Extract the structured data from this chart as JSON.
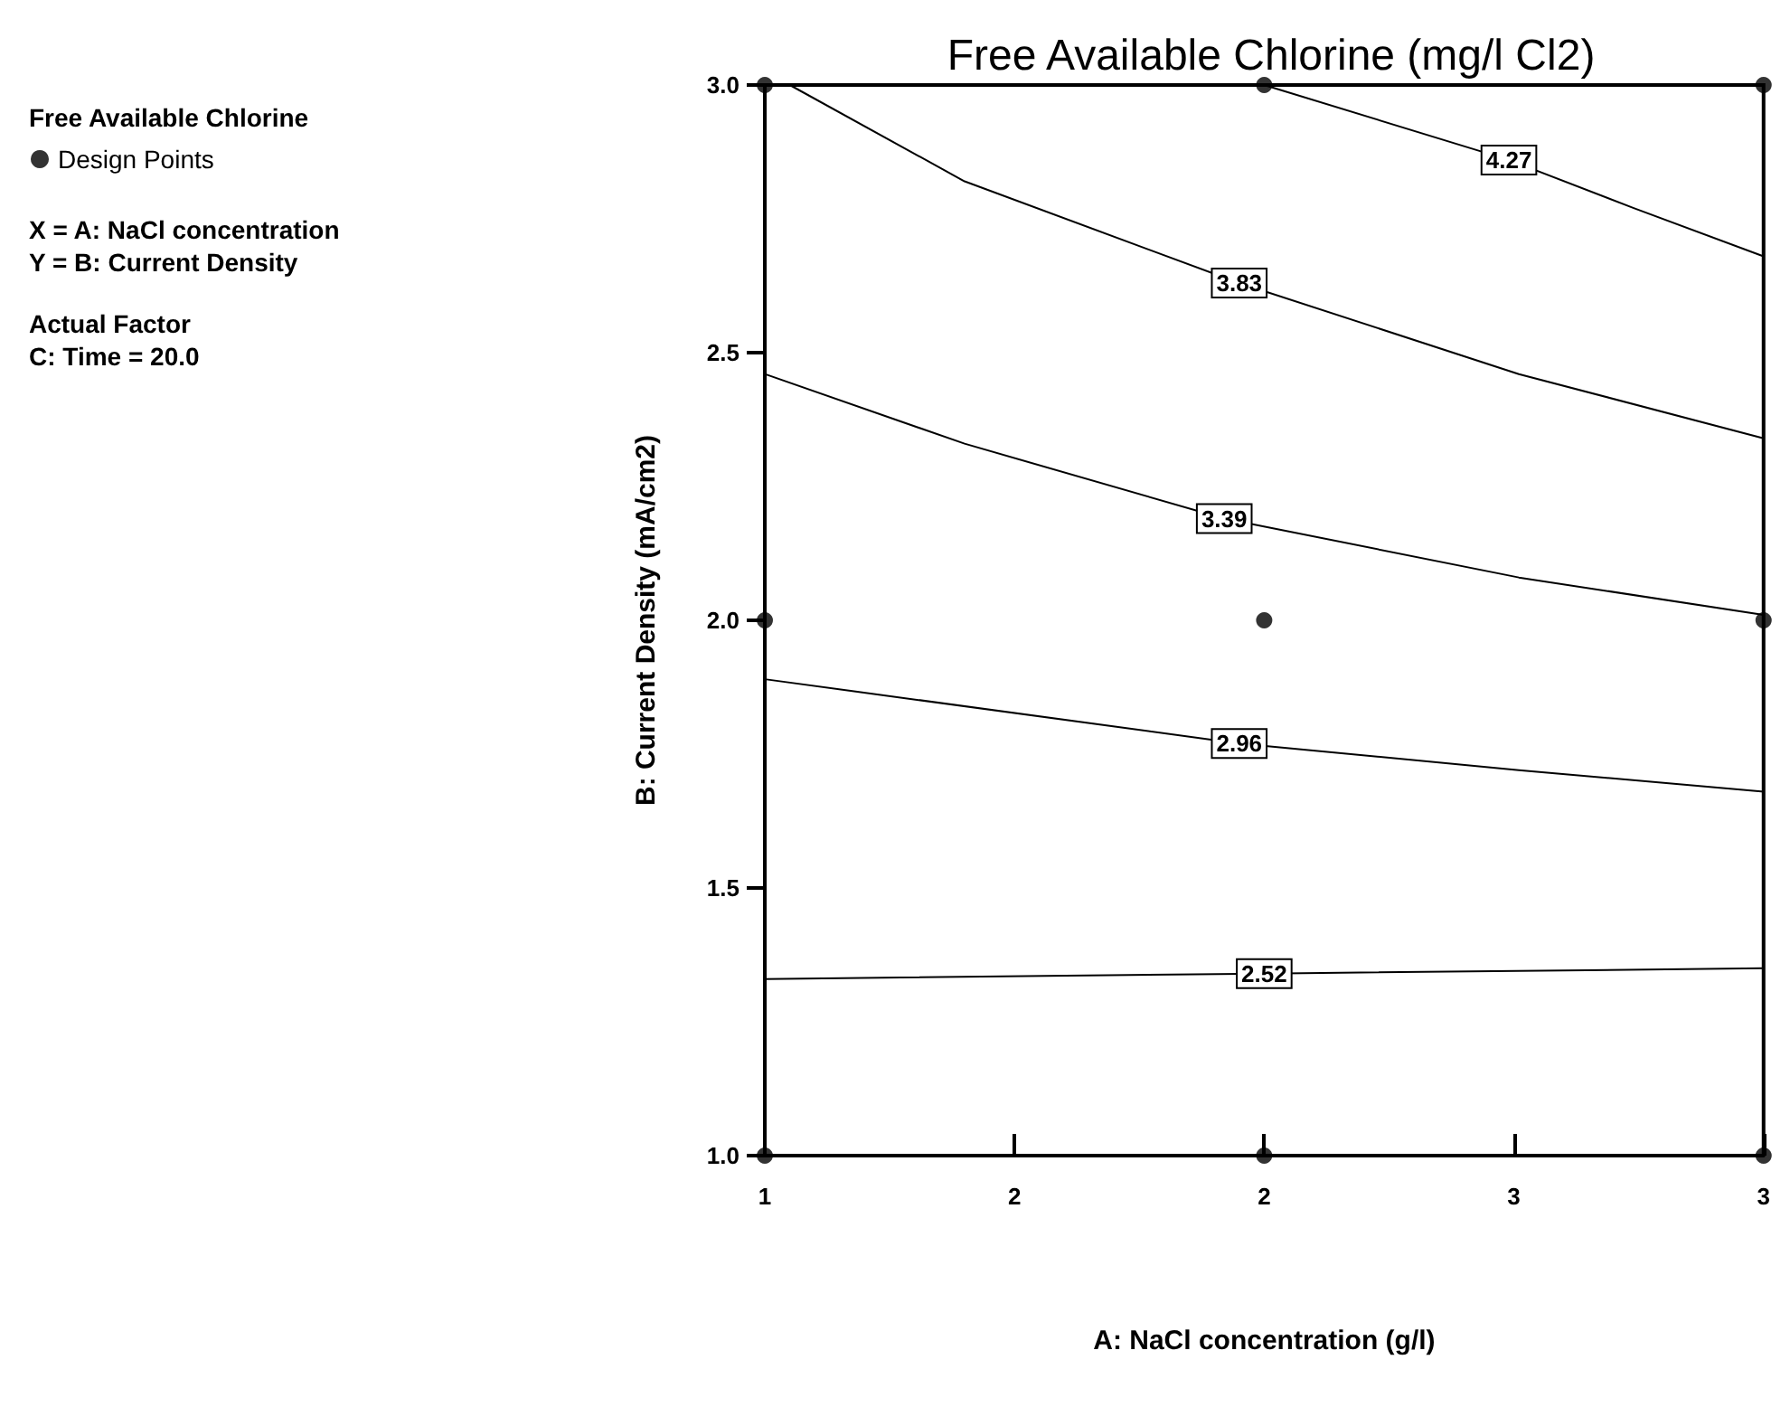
{
  "chart_data": {
    "type": "line",
    "title": "Free Available Chlorine (mg/l Cl2)",
    "xlabel": "A: NaCl concentration (g/l)",
    "ylabel": "B: Current Density (mA/cm2)",
    "legend_title": "Free Available Chlorine",
    "legend": "left",
    "annotations": [
      "X = A: NaCl concentration",
      "Y = B: Current Density",
      "Actual Factor",
      "C: Time = 20.0"
    ],
    "xlim": [
      1,
      3
    ],
    "xticks": [
      1,
      {
        "value": 1.5,
        "label": "2"
      },
      2,
      {
        "value": 2.5,
        "label": "3"
      },
      3
    ],
    "ylim": [
      1,
      3
    ],
    "yticks": [
      {
        "value": 1,
        "label": "1.0"
      },
      {
        "value": 1.5,
        "label": "1.5"
      },
      {
        "value": 2,
        "label": "2.0"
      },
      {
        "value": 2.5,
        "label": "2.5"
      },
      {
        "value": 3,
        "label": "3.0"
      }
    ],
    "grid": false,
    "line_style": "solid",
    "series": [
      {
        "name": "4.27",
        "color": "#000000",
        "x": [
          2,
          2.49,
          2.74,
          3
        ],
        "values": [
          3.0,
          2.86,
          2.77,
          2.68
        ]
      },
      {
        "name": "3.83",
        "color": "#000000",
        "x": [
          1.05,
          1.4,
          1.95,
          2.51,
          3
        ],
        "values": [
          3.0,
          2.82,
          2.63,
          2.46,
          2.34
        ]
      },
      {
        "name": "3.39",
        "color": "#000000",
        "x": [
          1,
          1.4,
          1.92,
          2.51,
          3
        ],
        "values": [
          2.46,
          2.33,
          2.19,
          2.08,
          2.01
        ]
      },
      {
        "name": "2.96",
        "color": "#000000",
        "x": [
          1,
          1.95,
          2.51,
          3
        ],
        "values": [
          1.89,
          1.77,
          1.72,
          1.68
        ]
      },
      {
        "name": "2.52",
        "color": "#000000",
        "x": [
          1,
          2,
          3
        ],
        "values": [
          1.33,
          1.34,
          1.35
        ]
      },
      {
        "name": "Design Points",
        "type": "scatter",
        "marker": "circle",
        "color": "#000000",
        "x": [
          1,
          2,
          3,
          1,
          2,
          3,
          1,
          2,
          3
        ],
        "values": [
          1,
          1,
          1,
          2,
          2,
          2,
          3,
          3,
          3
        ]
      }
    ]
  }
}
